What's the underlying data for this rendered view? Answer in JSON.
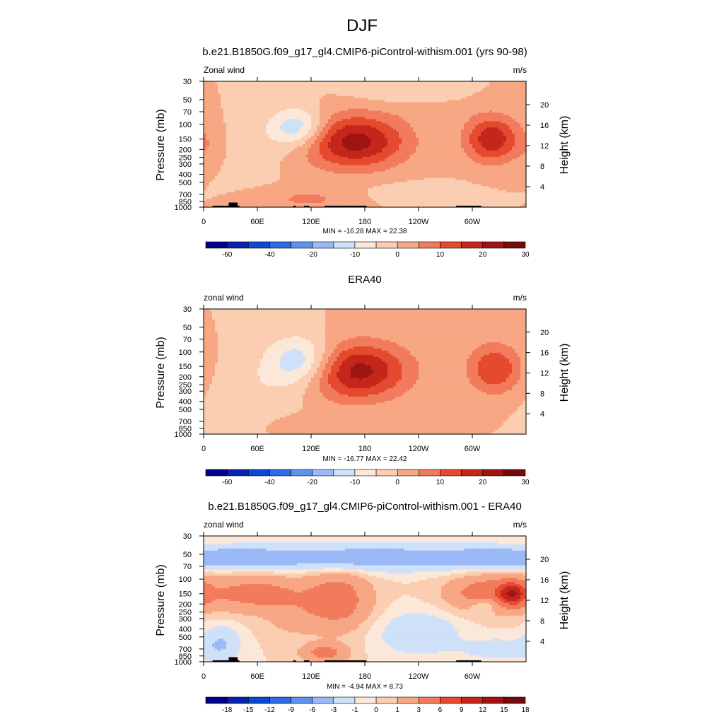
{
  "figure": {
    "season": "DJF"
  },
  "colors": {
    "panel_cmap": [
      "#00008b",
      "#0624ad",
      "#0b49d1",
      "#2c6ae6",
      "#5f92ee",
      "#9ab9f6",
      "#cfe0f9",
      "#fbe8d9",
      "#fbcdb1",
      "#f7a783",
      "#f17b5c",
      "#e54a2e",
      "#c5261c",
      "#9f1313",
      "#750a0a"
    ],
    "diff_cmap": [
      "#00008b",
      "#0624ad",
      "#0b49d1",
      "#2c6ae6",
      "#5f92ee",
      "#9ab9f6",
      "#cfe0f9",
      "#fbe8d9",
      "#fbcdb1",
      "#f7a783",
      "#f17b5c",
      "#e54a2e",
      "#c5261c",
      "#9f1313",
      "#750a0a"
    ],
    "terrain": "#000000"
  },
  "chart_data": [
    {
      "type": "heatmap",
      "title": "b.e21.B1850G.f09_g17_gl4.CMIP6-piControl-withism.001 (yrs 90-98)",
      "left_label": "Zonal wind",
      "right_label": "m/s",
      "ylabel": "Pressure (mb)",
      "ylabel_right": "Height (km)",
      "x_ticks": [
        "0",
        "60E",
        "120E",
        "180",
        "120W",
        "60W"
      ],
      "x_tick_values": [
        0,
        60,
        120,
        180,
        240,
        300
      ],
      "xlim": [
        0,
        360
      ],
      "y_ticks": [
        "30",
        "50",
        "70",
        "100",
        "150",
        "200",
        "250",
        "300",
        "400",
        "500",
        "700",
        "850",
        "1000"
      ],
      "y_tick_values": [
        30,
        50,
        70,
        100,
        150,
        200,
        250,
        300,
        400,
        500,
        700,
        850,
        1000
      ],
      "ylim": [
        1000,
        30
      ],
      "y_scale": "log",
      "right_ticks": [
        "4",
        "8",
        "12",
        "16",
        "20"
      ],
      "stats": "MIN = -16.28  MAX =  22.38",
      "min": -16.28,
      "max": 22.38,
      "levels": [
        -70,
        -60,
        -50,
        -40,
        -30,
        -20,
        -15,
        -10,
        -5,
        0,
        5,
        10,
        15,
        20,
        25,
        30
      ],
      "colorbar_labels": [
        "-60",
        "-40",
        "-20",
        "-10",
        "0",
        "10",
        "20",
        "30"
      ],
      "terrain_mask": true,
      "features": [
        {
          "lon": 168,
          "p": 160,
          "value": 22.38,
          "rx": 58,
          "ry": 0.75
        },
        {
          "lon": 322,
          "p": 150,
          "value": 19,
          "rx": 30,
          "ry": 0.65
        },
        {
          "lon": 105,
          "p": 110,
          "value": -16.28,
          "rx": 32,
          "ry": 0.55
        },
        {
          "lon": 60,
          "p": 200,
          "value": -2,
          "rx": 40,
          "ry": 0.8
        },
        {
          "lon": 115,
          "p": 800,
          "value": 6,
          "rx": 45,
          "ry": 0.3
        },
        {
          "lon": 215,
          "p": 40,
          "value": -4,
          "rx": 55,
          "ry": 0.3
        },
        {
          "lon": 5,
          "p": 180,
          "value": 3,
          "rx": 18,
          "ry": 0.5
        },
        {
          "lon": 240,
          "p": 650,
          "value": -4,
          "rx": 50,
          "ry": 0.25
        },
        {
          "lon": 260,
          "p": 70,
          "value": 2,
          "rx": 40,
          "ry": 0.25
        }
      ]
    },
    {
      "type": "heatmap",
      "title": "ERA40",
      "left_label": "zonal wind",
      "right_label": "m/s",
      "ylabel": "Pressure (mb)",
      "ylabel_right": "Height (km)",
      "x_ticks": [
        "0",
        "60E",
        "120E",
        "180",
        "120W",
        "60W"
      ],
      "x_tick_values": [
        0,
        60,
        120,
        180,
        240,
        300
      ],
      "xlim": [
        0,
        360
      ],
      "y_ticks": [
        "30",
        "50",
        "70",
        "100",
        "150",
        "200",
        "250",
        "300",
        "400",
        "500",
        "700",
        "850",
        "1000"
      ],
      "y_tick_values": [
        30,
        50,
        70,
        100,
        150,
        200,
        250,
        300,
        400,
        500,
        700,
        850,
        1000
      ],
      "ylim": [
        1000,
        30
      ],
      "y_scale": "log",
      "right_ticks": [
        "4",
        "8",
        "12",
        "16",
        "20"
      ],
      "stats": "MIN = -16.77  MAX =  22.42",
      "min": -16.77,
      "max": 22.42,
      "levels": [
        -70,
        -60,
        -50,
        -40,
        -30,
        -20,
        -15,
        -10,
        -5,
        0,
        5,
        10,
        15,
        20,
        25,
        30
      ],
      "colorbar_labels": [
        "-60",
        "-40",
        "-20",
        "-10",
        "0",
        "10",
        "20",
        "30"
      ],
      "terrain_mask": false,
      "features": [
        {
          "lon": 170,
          "p": 170,
          "value": 22.42,
          "rx": 58,
          "ry": 0.8
        },
        {
          "lon": 325,
          "p": 160,
          "value": 15,
          "rx": 30,
          "ry": 0.7
        },
        {
          "lon": 110,
          "p": 130,
          "value": -16.77,
          "rx": 38,
          "ry": 0.7
        },
        {
          "lon": 60,
          "p": 300,
          "value": -4,
          "rx": 50,
          "ry": 1.0
        },
        {
          "lon": 120,
          "p": 780,
          "value": 4,
          "rx": 50,
          "ry": 0.3
        },
        {
          "lon": 20,
          "p": 700,
          "value": -3,
          "rx": 20,
          "ry": 0.3
        }
      ]
    },
    {
      "type": "heatmap",
      "title": "b.e21.B1850G.f09_g17_gl4.CMIP6-piControl-withism.001 - ERA40",
      "left_label": "zonal wind",
      "right_label": "m/s",
      "ylabel": "Pressure (mb)",
      "ylabel_right": "Height (km)",
      "x_ticks": [
        "0",
        "60E",
        "120E",
        "180",
        "120W",
        "60W"
      ],
      "x_tick_values": [
        0,
        60,
        120,
        180,
        240,
        300
      ],
      "xlim": [
        0,
        360
      ],
      "y_ticks": [
        "30",
        "50",
        "70",
        "100",
        "150",
        "200",
        "250",
        "300",
        "400",
        "500",
        "700",
        "850",
        "1000"
      ],
      "y_tick_values": [
        30,
        50,
        70,
        100,
        150,
        200,
        250,
        300,
        400,
        500,
        700,
        850,
        1000
      ],
      "ylim": [
        1000,
        30
      ],
      "y_scale": "log",
      "right_ticks": [
        "4",
        "8",
        "12",
        "16",
        "20"
      ],
      "stats": "MIN =  -4.94  MAX =   8.73",
      "min": -4.94,
      "max": 8.73,
      "levels": [
        -21,
        -18,
        -15,
        -12,
        -9,
        -6,
        -3,
        -1,
        0,
        1,
        3,
        6,
        9,
        12,
        15,
        18
      ],
      "colorbar_labels": [
        "-18",
        "-15",
        "-12",
        "-9",
        "-6",
        "-3",
        "-1",
        "0",
        "1",
        "3",
        "6",
        "9",
        "12",
        "15",
        "18"
      ],
      "terrain_mask": true,
      "features": [
        {
          "lon": 180,
          "p": 55,
          "value": -4.94,
          "rx": 120,
          "ry": 0.35
        },
        {
          "lon": 40,
          "p": 55,
          "value": -3.5,
          "rx": 60,
          "ry": 0.3
        },
        {
          "lon": 320,
          "p": 55,
          "value": -3.5,
          "rx": 60,
          "ry": 0.3
        },
        {
          "lon": 60,
          "p": 150,
          "value": 4,
          "rx": 55,
          "ry": 0.5
        },
        {
          "lon": 150,
          "p": 180,
          "value": 4.5,
          "rx": 35,
          "ry": 0.8
        },
        {
          "lon": 320,
          "p": 150,
          "value": 5,
          "rx": 45,
          "ry": 0.5
        },
        {
          "lon": 345,
          "p": 150,
          "value": 8.73,
          "rx": 15,
          "ry": 0.3
        },
        {
          "lon": 315,
          "p": 200,
          "value": -3,
          "rx": 18,
          "ry": 0.22
        },
        {
          "lon": 240,
          "p": 450,
          "value": -2.5,
          "rx": 45,
          "ry": 0.6
        },
        {
          "lon": 135,
          "p": 780,
          "value": 4,
          "rx": 25,
          "ry": 0.25
        },
        {
          "lon": 20,
          "p": 600,
          "value": -3,
          "rx": 20,
          "ry": 0.5
        },
        {
          "lon": 330,
          "p": 700,
          "value": -2,
          "rx": 40,
          "ry": 0.3
        },
        {
          "lon": 100,
          "p": 300,
          "value": 1.5,
          "rx": 30,
          "ry": 0.5
        }
      ]
    }
  ]
}
